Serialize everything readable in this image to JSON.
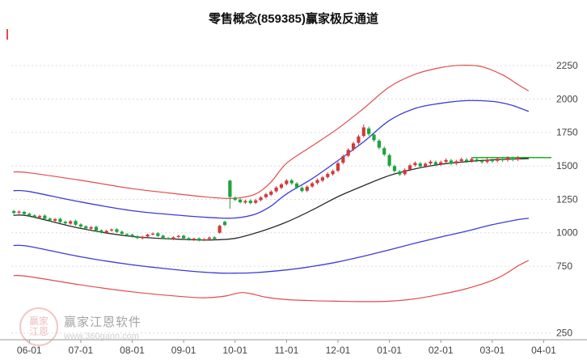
{
  "watermark": {
    "brand": "赢家江恩软件",
    "url": "www.360gann.com",
    "logo_line1": "赢家",
    "logo_line2": "江恩"
  },
  "chart_data": {
    "type": "candlestick",
    "title": "零售概念(859385)赢家极反通道",
    "xlabel": "",
    "ylabel": "",
    "grid": "horizontal-dotted",
    "legend": "none",
    "xlim": [
      -3.5,
      101.5
    ],
    "ylim": [
      200,
      2450
    ],
    "y_ticks": [
      2250,
      2000,
      1750,
      1500,
      1250,
      1000,
      750,
      250
    ],
    "x_ticks": [
      {
        "label": "06-01",
        "pos": 0
      },
      {
        "label": "07-01",
        "pos": 10
      },
      {
        "label": "08-01",
        "pos": 20
      },
      {
        "label": "09-01",
        "pos": 30
      },
      {
        "label": "10-01",
        "pos": 40
      },
      {
        "label": "11-01",
        "pos": 50
      },
      {
        "label": "12-01",
        "pos": 60
      },
      {
        "label": "01-01",
        "pos": 70
      },
      {
        "label": "02-01",
        "pos": 80
      },
      {
        "label": "03-01",
        "pos": 90
      },
      {
        "label": "04-01",
        "pos": 100
      }
    ],
    "colors": {
      "up": "#cf3b3b",
      "down": "#1da33c",
      "grid": "#dcdcdc",
      "axis": "#9a9a9a",
      "label": "#444444",
      "current": "#0aa40a"
    },
    "bands": [
      {
        "name": "lower-rail-red",
        "color": "#e24b4b",
        "width": 1.2,
        "points": [
          [
            -3,
            680
          ],
          [
            0,
            672
          ],
          [
            10,
            610
          ],
          [
            20,
            558
          ],
          [
            30,
            522
          ],
          [
            34,
            514
          ],
          [
            38,
            526
          ],
          [
            41,
            552
          ],
          [
            43,
            545
          ],
          [
            46,
            518
          ],
          [
            50,
            500
          ],
          [
            55,
            492
          ],
          [
            60,
            488
          ],
          [
            65,
            485
          ],
          [
            70,
            488
          ],
          [
            75,
            506
          ],
          [
            80,
            540
          ],
          [
            84,
            572
          ],
          [
            88,
            616
          ],
          [
            91,
            660
          ],
          [
            93,
            702
          ],
          [
            95,
            752
          ],
          [
            97,
            792
          ]
        ]
      },
      {
        "name": "lower-rail-blue",
        "color": "#3b3bd8",
        "width": 1.3,
        "points": [
          [
            -3,
            905
          ],
          [
            0,
            898
          ],
          [
            10,
            820
          ],
          [
            20,
            760
          ],
          [
            30,
            718
          ],
          [
            36,
            700
          ],
          [
            40,
            698
          ],
          [
            44,
            702
          ],
          [
            50,
            722
          ],
          [
            55,
            748
          ],
          [
            60,
            782
          ],
          [
            65,
            825
          ],
          [
            70,
            872
          ],
          [
            75,
            922
          ],
          [
            80,
            968
          ],
          [
            85,
            1012
          ],
          [
            90,
            1060
          ],
          [
            95,
            1098
          ],
          [
            97,
            1108
          ]
        ]
      },
      {
        "name": "mid-rail-black",
        "color": "#2b2b2b",
        "width": 1.3,
        "points": [
          [
            -3,
            1130
          ],
          [
            0,
            1124
          ],
          [
            10,
            1032
          ],
          [
            20,
            972
          ],
          [
            30,
            950
          ],
          [
            35,
            946
          ],
          [
            40,
            958
          ],
          [
            45,
            1010
          ],
          [
            50,
            1080
          ],
          [
            55,
            1170
          ],
          [
            60,
            1270
          ],
          [
            65,
            1352
          ],
          [
            70,
            1428
          ],
          [
            75,
            1478
          ],
          [
            80,
            1512
          ],
          [
            85,
            1532
          ],
          [
            90,
            1545
          ],
          [
            95,
            1552
          ],
          [
            97,
            1554
          ]
        ]
      },
      {
        "name": "upper-rail-blue",
        "color": "#3b3bd8",
        "width": 1.3,
        "points": [
          [
            -3,
            1315
          ],
          [
            0,
            1308
          ],
          [
            10,
            1230
          ],
          [
            20,
            1165
          ],
          [
            30,
            1128
          ],
          [
            36,
            1112
          ],
          [
            40,
            1110
          ],
          [
            44,
            1140
          ],
          [
            47,
            1200
          ],
          [
            50,
            1290
          ],
          [
            55,
            1405
          ],
          [
            60,
            1540
          ],
          [
            65,
            1680
          ],
          [
            70,
            1840
          ],
          [
            75,
            1930
          ],
          [
            80,
            1968
          ],
          [
            85,
            1988
          ],
          [
            90,
            1982
          ],
          [
            93,
            1962
          ],
          [
            95,
            1938
          ],
          [
            97,
            1908
          ]
        ]
      },
      {
        "name": "upper-rail-red",
        "color": "#e24b4b",
        "width": 1.2,
        "points": [
          [
            -3,
            1455
          ],
          [
            0,
            1448
          ],
          [
            10,
            1392
          ],
          [
            20,
            1330
          ],
          [
            30,
            1285
          ],
          [
            36,
            1262
          ],
          [
            40,
            1258
          ],
          [
            44,
            1290
          ],
          [
            47,
            1380
          ],
          [
            50,
            1520
          ],
          [
            55,
            1650
          ],
          [
            60,
            1780
          ],
          [
            65,
            1930
          ],
          [
            70,
            2090
          ],
          [
            75,
            2185
          ],
          [
            80,
            2235
          ],
          [
            84,
            2252
          ],
          [
            88,
            2242
          ],
          [
            92,
            2180
          ],
          [
            95,
            2108
          ],
          [
            97,
            2062
          ]
        ]
      }
    ],
    "current_price_line": {
      "value": 1562,
      "from": 86,
      "to": 101.5
    },
    "candles": {
      "start_index": -3,
      "wick_pct": 0.008,
      "ohlc": [
        [
          1162,
          1148
        ],
        [
          1150,
          1158
        ],
        [
          1156,
          1140
        ],
        [
          1142,
          1128
        ],
        [
          1130,
          1118
        ],
        [
          1115,
          1126
        ],
        [
          1128,
          1104
        ],
        [
          1106,
          1092
        ],
        [
          1090,
          1102
        ],
        [
          1104,
          1080
        ],
        [
          1082,
          1070
        ],
        [
          1068,
          1086
        ],
        [
          1088,
          1060
        ],
        [
          1062,
          1046
        ],
        [
          1048,
          1032
        ],
        [
          1030,
          1042
        ],
        [
          1044,
          1016
        ],
        [
          1018,
          1002
        ],
        [
          1000,
          1014
        ],
        [
          1016,
          1024
        ],
        [
          1026,
          1006
        ],
        [
          1008,
          992
        ],
        [
          990,
          984
        ],
        [
          986,
          972
        ],
        [
          974,
          960
        ],
        [
          958,
          970
        ],
        [
          972,
          986
        ],
        [
          988,
          994
        ],
        [
          996,
          976
        ],
        [
          978,
          962
        ],
        [
          960,
          954
        ],
        [
          952,
          966
        ],
        [
          968,
          976
        ],
        [
          978,
          958
        ],
        [
          960,
          948
        ],
        [
          946,
          956
        ],
        [
          958,
          942
        ],
        [
          944,
          952
        ],
        [
          954,
          964
        ],
        [
          966,
          954
        ],
        [
          1000,
          1052
        ],
        [
          1082,
          1058
        ],
        [
          1390,
          1268,
          1396,
          1180
        ],
        [
          1262,
          1246
        ],
        [
          1248,
          1228
        ],
        [
          1226,
          1238
        ],
        [
          1240,
          1222
        ],
        [
          1224,
          1242
        ],
        [
          1244,
          1264
        ],
        [
          1266,
          1288
        ],
        [
          1284,
          1308
        ],
        [
          1310,
          1338
        ],
        [
          1336,
          1362
        ],
        [
          1364,
          1390
        ],
        [
          1392,
          1370
        ],
        [
          1368,
          1338
        ],
        [
          1336,
          1312
        ],
        [
          1314,
          1344
        ],
        [
          1346,
          1370
        ],
        [
          1372,
          1394
        ],
        [
          1390,
          1414
        ],
        [
          1416,
          1440
        ],
        [
          1438,
          1462
        ],
        [
          1464,
          1520
        ],
        [
          1524,
          1572
        ],
        [
          1576,
          1620
        ],
        [
          1624,
          1668
        ],
        [
          1672,
          1720
        ],
        [
          1724,
          1788,
          1810,
          1712
        ],
        [
          1780,
          1738
        ],
        [
          1734,
          1692
        ],
        [
          1688,
          1636
        ],
        [
          1632,
          1585
        ],
        [
          1580,
          1502
        ],
        [
          1498,
          1462
        ],
        [
          1458,
          1436
        ],
        [
          1438,
          1470
        ],
        [
          1472,
          1504
        ],
        [
          1506,
          1522
        ],
        [
          1518,
          1496
        ],
        [
          1498,
          1516
        ],
        [
          1518,
          1532
        ],
        [
          1528,
          1510
        ],
        [
          1512,
          1528
        ],
        [
          1530,
          1544
        ],
        [
          1540,
          1516
        ],
        [
          1518,
          1534
        ],
        [
          1536,
          1550
        ],
        [
          1546,
          1534
        ],
        [
          1536,
          1552
        ],
        [
          1548,
          1540
        ],
        [
          1536,
          1528
        ],
        [
          1530,
          1546
        ],
        [
          1542,
          1536
        ],
        [
          1538,
          1554
        ],
        [
          1550,
          1542
        ],
        [
          1544,
          1560
        ],
        [
          1556,
          1546
        ],
        [
          1548,
          1562
        ]
      ]
    }
  }
}
